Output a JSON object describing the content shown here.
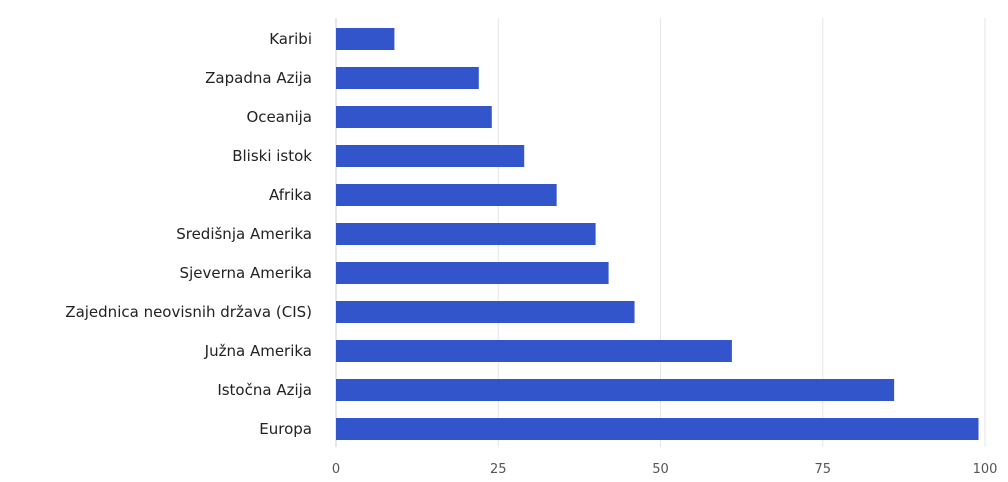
{
  "chart_data": {
    "type": "bar",
    "orientation": "horizontal",
    "title": "",
    "xlabel": "",
    "ylabel": "",
    "categories": [
      "Karibi",
      "Zapadna Azija",
      "Oceanija",
      "Bliski istok",
      "Afrika",
      "Središnja Amerika",
      "Sjeverna Amerika",
      "Zajednica neovisnih država (CIS)",
      "Južna Amerika",
      "Istočna Azija",
      "Europa"
    ],
    "values": [
      9,
      22,
      24,
      29,
      34,
      40,
      42,
      46,
      61,
      86,
      99
    ],
    "xlim": [
      0,
      100
    ],
    "xticks": [
      "0",
      "25",
      "50",
      "75",
      "100"
    ],
    "grid": "vertical",
    "legend": "none",
    "bar_color": "#3355cc"
  }
}
